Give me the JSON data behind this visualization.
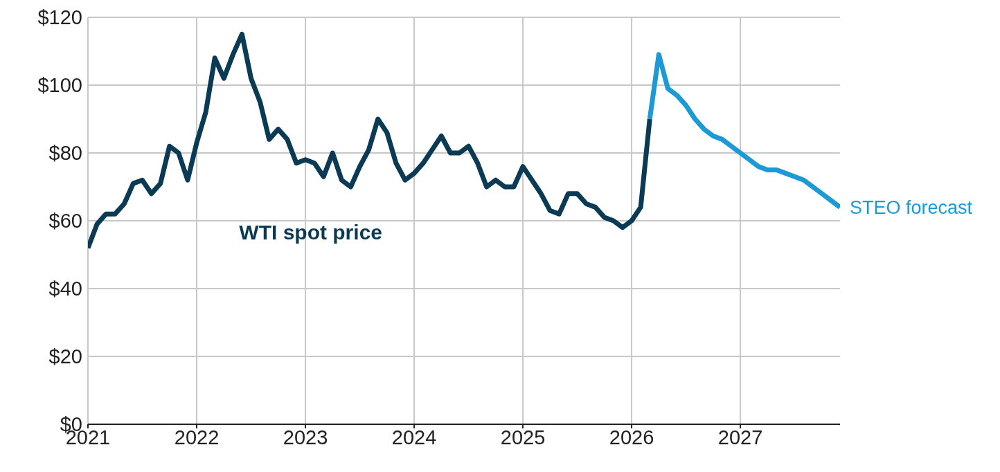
{
  "chart_data": {
    "type": "line",
    "x": [
      "2021-01",
      "2021-02",
      "2021-03",
      "2021-04",
      "2021-05",
      "2021-06",
      "2021-07",
      "2021-08",
      "2021-09",
      "2021-10",
      "2021-11",
      "2021-12",
      "2022-01",
      "2022-02",
      "2022-03",
      "2022-04",
      "2022-05",
      "2022-06",
      "2022-07",
      "2022-08",
      "2022-09",
      "2022-10",
      "2022-11",
      "2022-12",
      "2023-01",
      "2023-02",
      "2023-03",
      "2023-04",
      "2023-05",
      "2023-06",
      "2023-07",
      "2023-08",
      "2023-09",
      "2023-10",
      "2023-11",
      "2023-12",
      "2024-01",
      "2024-02",
      "2024-03",
      "2024-04",
      "2024-05",
      "2024-06",
      "2024-07",
      "2024-08",
      "2024-09",
      "2024-10",
      "2024-11",
      "2024-12",
      "2025-01",
      "2025-02",
      "2025-03",
      "2025-04",
      "2025-05",
      "2025-06",
      "2025-07",
      "2025-08",
      "2025-09",
      "2025-10",
      "2025-11",
      "2025-12",
      "2026-01",
      "2026-02",
      "2026-03"
    ],
    "series": [
      {
        "name": "WTI spot price",
        "color": "#0b3a55",
        "values": [
          52,
          59,
          62,
          62,
          65,
          71,
          72,
          68,
          71,
          82,
          80,
          72,
          83,
          92,
          108,
          102,
          109,
          115,
          102,
          95,
          84,
          87,
          84,
          77,
          78,
          77,
          73,
          80,
          72,
          70,
          76,
          81,
          90,
          86,
          77,
          72,
          74,
          77,
          81,
          85,
          80,
          80,
          82,
          77,
          70,
          72,
          70,
          70,
          76,
          72,
          68,
          63,
          62,
          68,
          68,
          65,
          64,
          61,
          60,
          58,
          60,
          64,
          90
        ]
      },
      {
        "name": "STEO forecast",
        "color": "#1b9ad6",
        "x": [
          "2026-03",
          "2026-04",
          "2026-05",
          "2026-06",
          "2026-07",
          "2026-08",
          "2026-09",
          "2026-10",
          "2026-11",
          "2026-12",
          "2027-01",
          "2027-02",
          "2027-03",
          "2027-04",
          "2027-05",
          "2027-06",
          "2027-07",
          "2027-08",
          "2027-09",
          "2027-10",
          "2027-11",
          "2027-12"
        ],
        "values": [
          90,
          109,
          99,
          97,
          94,
          90,
          87,
          85,
          84,
          82,
          80,
          78,
          76,
          75,
          75,
          74,
          73,
          72,
          70,
          68,
          66,
          64
        ]
      }
    ],
    "xlim": [
      "2021-01",
      "2027-12"
    ],
    "xticks": [
      {
        "value": "2021-01",
        "label": "2021"
      },
      {
        "value": "2022-01",
        "label": "2022"
      },
      {
        "value": "2023-01",
        "label": "2023"
      },
      {
        "value": "2024-01",
        "label": "2024"
      },
      {
        "value": "2025-01",
        "label": "2025"
      },
      {
        "value": "2026-01",
        "label": "2026"
      },
      {
        "value": "2027-01",
        "label": "2027"
      }
    ],
    "ylim": [
      0,
      120
    ],
    "yticks": [
      {
        "value": 0,
        "label": "$0"
      },
      {
        "value": 20,
        "label": "$20"
      },
      {
        "value": 40,
        "label": "$40"
      },
      {
        "value": 60,
        "label": "$60"
      },
      {
        "value": 80,
        "label": "$80"
      },
      {
        "value": 100,
        "label": "$100"
      },
      {
        "value": 120,
        "label": "$120"
      }
    ],
    "grid": true,
    "legend": false,
    "marker": "none",
    "line_style": "solid"
  }
}
